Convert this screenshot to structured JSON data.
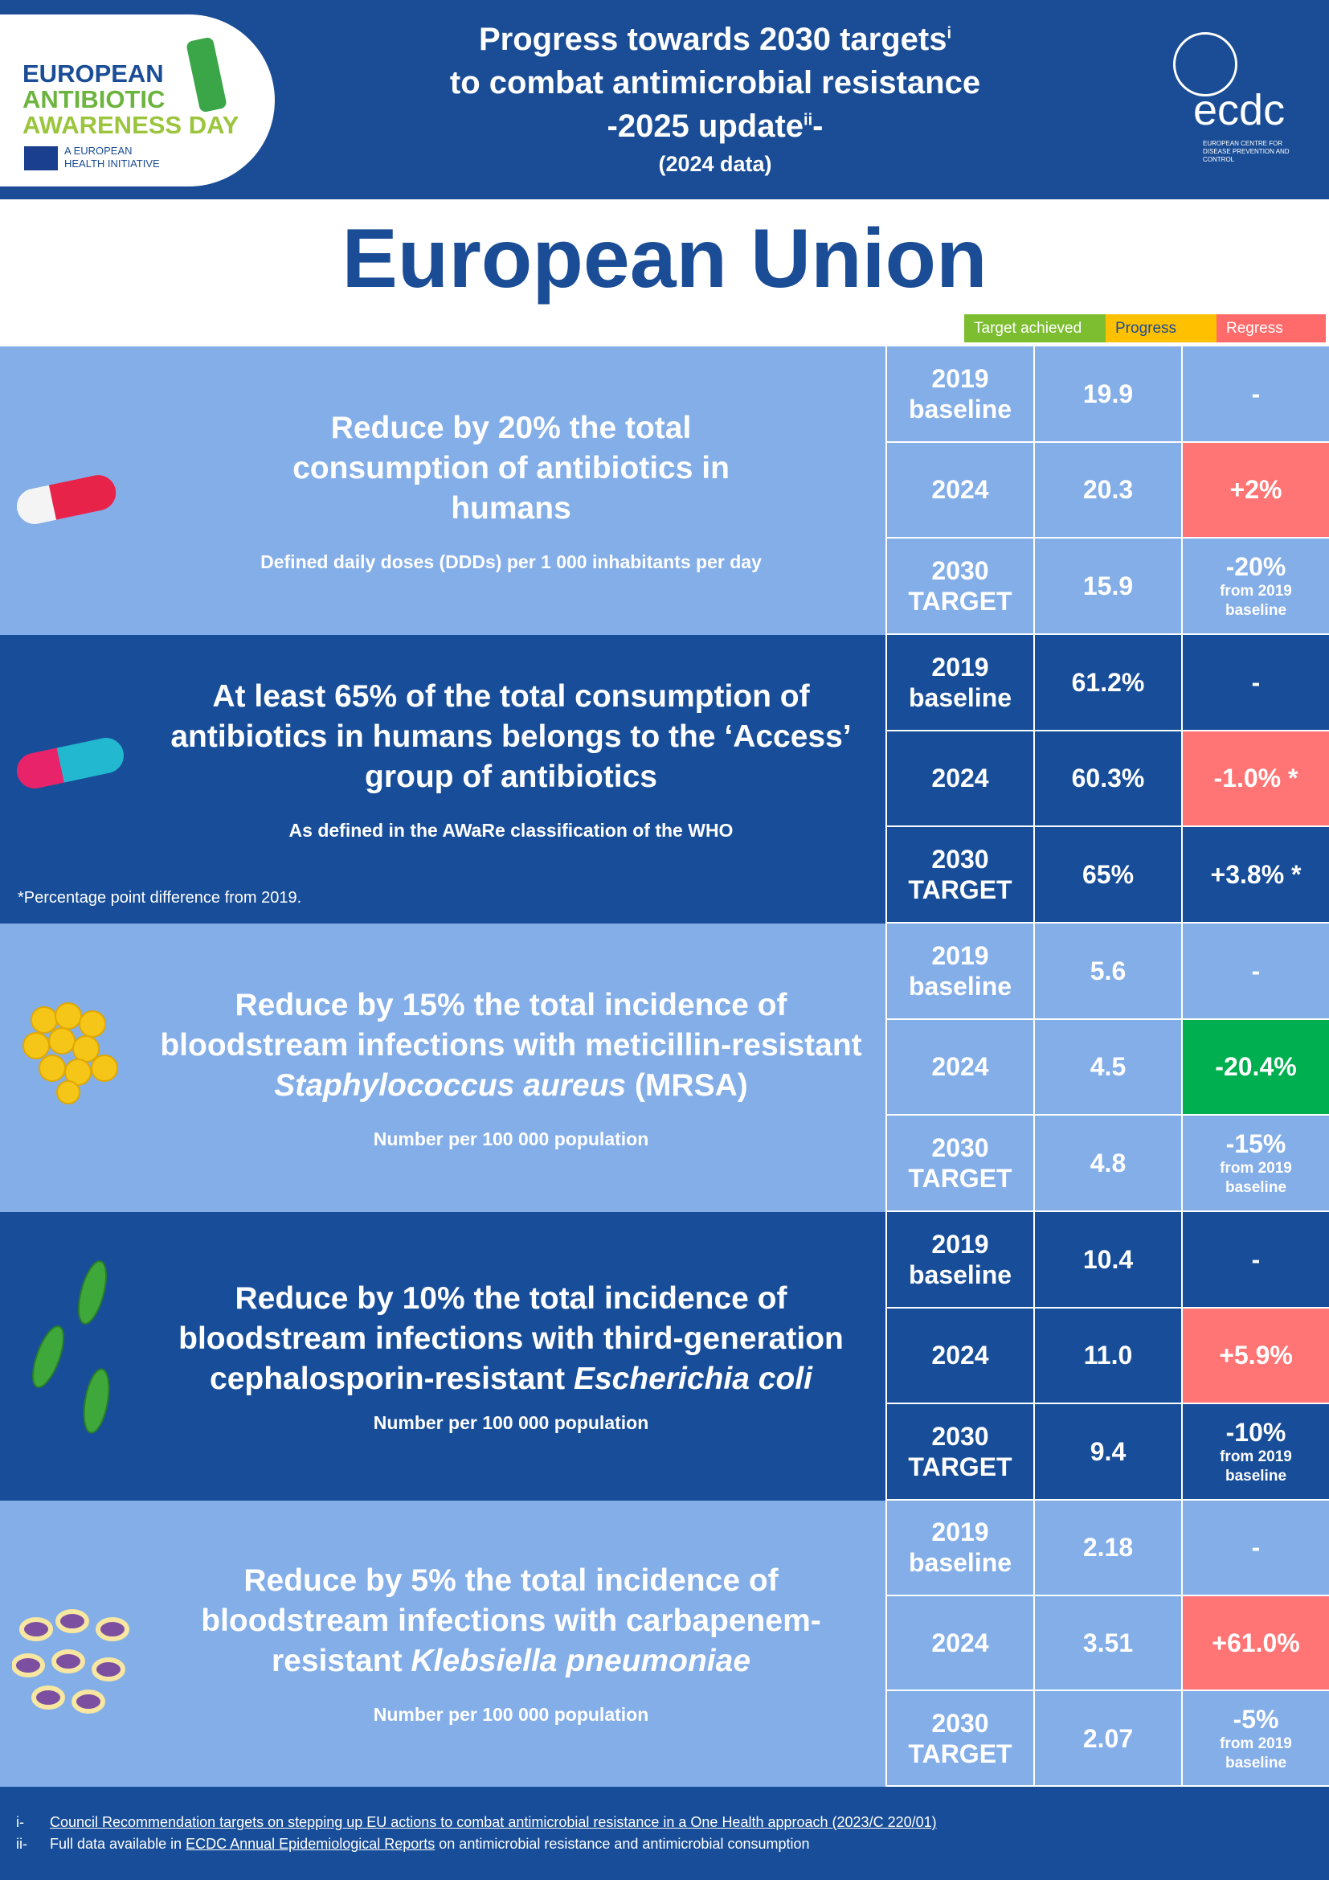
{
  "header": {
    "logo_left": {
      "line1": "EUROPEAN",
      "line2": "ANTIBIOTIC",
      "line3": "AWARENESS DAY",
      "initiative": "A EUROPEAN HEALTH INITIATIVE"
    },
    "title_line1": "Progress towards 2030 targets",
    "title_sup1": "i",
    "title_line2": "to combat antimicrobial resistance",
    "title_line3": "-2025 update",
    "title_sup2": "ii",
    "title_line3_end": "-",
    "subtitle": "(2024 data)",
    "logo_right": {
      "name": "ecdc",
      "sub": "EUROPEAN CENTRE FOR DISEASE PREVENTION AND CONTROL"
    }
  },
  "region": "European Union",
  "legend": {
    "achieved": "Target achieved",
    "progress": "Progress",
    "regress": "Regress",
    "colors": {
      "achieved": "#7dbe31",
      "progress": "#ffc000",
      "regress": "#ff6b6b"
    }
  },
  "sections": [
    {
      "goal": "Reduce by 20% the total consumption of antibiotics in humans",
      "unit": "Defined daily doses (DDDs) per 1 000 inhabitants per day",
      "icon": "pill-red-icon",
      "rows": [
        {
          "label": "2019 baseline",
          "value": "19.9",
          "change": "-",
          "sub": ""
        },
        {
          "label": "2024",
          "value": "20.3",
          "change": "+2%",
          "status": "regress"
        },
        {
          "label": "2030 TARGET",
          "value": "15.9",
          "change": "-20%",
          "sub": "from 2019 baseline"
        }
      ]
    },
    {
      "goal": "At least 65% of the total consumption of antibiotics in humans belongs to the ‘Access’ group of antibiotics",
      "unit": "As defined in the AWaRe classification of the WHO",
      "note": "*Percentage point difference from 2019.",
      "icon": "pill-blue-icon",
      "rows": [
        {
          "label": "2019 baseline",
          "value": "61.2%",
          "change": "-"
        },
        {
          "label": "2024",
          "value": "60.3%",
          "change": "-1.0% *",
          "status": "regress"
        },
        {
          "label": "2030 TARGET",
          "value": "65%",
          "change": "+3.8% *"
        }
      ]
    },
    {
      "goal_pre": "Reduce by 15% the total incidence of bloodstream infections with meticillin-resistant ",
      "goal_it": "Staphylococcus aureus",
      "goal_post": " (MRSA)",
      "unit": "Number per 100 000 population",
      "icon": "staphylococcus-icon",
      "rows": [
        {
          "label": "2019 baseline",
          "value": "5.6",
          "change": "-"
        },
        {
          "label": "2024",
          "value": "4.5",
          "change": "-20.4%",
          "status": "achieved"
        },
        {
          "label": "2030 TARGET",
          "value": "4.8",
          "change": "-15%",
          "sub": "from 2019 baseline"
        }
      ]
    },
    {
      "goal_pre": "Reduce by 10% the total incidence of bloodstream infections with third-generation cephalosporin-resistant ",
      "goal_it": "Escherichia coli",
      "unit": "Number per 100 000 population",
      "icon": "e-coli-icon",
      "rows": [
        {
          "label": "2019 baseline",
          "value": "10.4",
          "change": "-"
        },
        {
          "label": "2024",
          "value": "11.0",
          "change": "+5.9%",
          "status": "regress"
        },
        {
          "label": "2030 TARGET",
          "value": "9.4",
          "change": "-10%",
          "sub": "from 2019 baseline"
        }
      ]
    },
    {
      "goal_pre": "Reduce by 5% the total incidence of bloodstream infections with carbapenem-resistant ",
      "goal_it": "Klebsiella pneumoniae",
      "unit": "Number per 100 000 population",
      "icon": "klebsiella-icon",
      "rows": [
        {
          "label": "2019 baseline",
          "value": "2.18",
          "change": "-"
        },
        {
          "label": "2024",
          "value": "3.51",
          "change": "+61.0%",
          "status": "regress"
        },
        {
          "label": "2030 TARGET",
          "value": "2.07",
          "change": "-5%",
          "sub": "from 2019 baseline"
        }
      ]
    }
  ],
  "footer": {
    "n1": "i-",
    "f1": "Council Recommendation targets on stepping up EU actions to combat antimicrobial resistance in a One Health approach (2023/C 220/01)",
    "n2": "ii-",
    "f2_pre": "Full data available in ",
    "f2_link": "ECDC Annual Epidemiological Reports",
    "f2_post": " on antimicrobial resistance and antimicrobial consumption"
  }
}
